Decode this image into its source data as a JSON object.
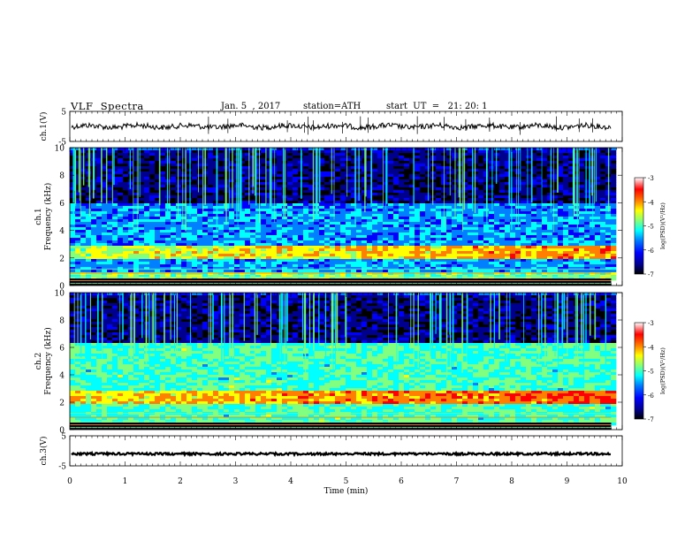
{
  "header": {
    "title": "VLF  Spectra",
    "date": "Jan. 5  , 2017",
    "station": "station=ATH",
    "start": "start  UT  =   21: 20: 1"
  },
  "chart_data": [
    {
      "type": "line",
      "panel": "ch1-waveform",
      "ylabel": "ch.1(V)",
      "ylim": [
        -5,
        5
      ],
      "yticks": [
        "5",
        "-5"
      ],
      "xlim": [
        0,
        10
      ],
      "approx_level": 0,
      "color": "#000000"
    },
    {
      "type": "heatmap",
      "panel": "ch1-spectrogram",
      "ylabel_line1": "ch.1",
      "ylabel_line2": "Frequency  (kHz)",
      "ylim": [
        0,
        10
      ],
      "yticks": [
        "0",
        "2",
        "4",
        "6",
        "8",
        "10"
      ],
      "xlim": [
        0,
        10
      ],
      "data_xmax": 9.8,
      "colorbar": {
        "label": "log(PSD)(V²/Hz)",
        "range": [
          -7,
          -3
        ],
        "ticks": [
          "-3",
          "-4",
          "-5",
          "-6",
          "-7"
        ],
        "colors": [
          "#000000",
          "#00008f",
          "#0000ff",
          "#0080ff",
          "#00ffff",
          "#80ff80",
          "#ffff00",
          "#ff8000",
          "#ff0000",
          "#ffffff"
        ]
      },
      "bands": [
        {
          "fmin": 0.0,
          "fmax": 1.0,
          "level": -4.8
        },
        {
          "fmin": 1.0,
          "fmax": 2.0,
          "level": -5.6
        },
        {
          "fmin": 2.0,
          "fmax": 3.0,
          "level": -4.6
        },
        {
          "fmin": 3.0,
          "fmax": 6.0,
          "level": -5.6
        },
        {
          "fmin": 6.0,
          "fmax": 10.0,
          "level": -6.6
        }
      ]
    },
    {
      "type": "heatmap",
      "panel": "ch2-spectrogram",
      "ylabel_line1": "ch.2",
      "ylabel_line2": "Frequency  (kHz)",
      "ylim": [
        0,
        10
      ],
      "yticks": [
        "0",
        "2",
        "4",
        "6",
        "8",
        "10"
      ],
      "xlim": [
        0,
        10
      ],
      "data_xmax": 9.8,
      "colorbar": {
        "label": "log(PSD)(V²/Hz)",
        "range": [
          -7,
          -3
        ],
        "ticks": [
          "-3",
          "-4",
          "-5",
          "-6",
          "-7"
        ],
        "colors": [
          "#000000",
          "#00008f",
          "#0000ff",
          "#0080ff",
          "#00ffff",
          "#80ff80",
          "#ffff00",
          "#ff8000",
          "#ff0000",
          "#ffffff"
        ]
      },
      "bands": [
        {
          "fmin": 0.0,
          "fmax": 2.0,
          "level": -5.0
        },
        {
          "fmin": 2.0,
          "fmax": 3.0,
          "level": -4.3
        },
        {
          "fmin": 3.0,
          "fmax": 6.4,
          "level": -5.0
        },
        {
          "fmin": 6.4,
          "fmax": 10.0,
          "level": -6.6
        }
      ]
    },
    {
      "type": "line",
      "panel": "ch3-waveform",
      "ylabel": "ch.3(V)",
      "ylim": [
        -5,
        5
      ],
      "yticks": [
        "5",
        "-5"
      ],
      "xlim": [
        0,
        10
      ],
      "approx_level": -1,
      "xlabel": "Time  (min)",
      "xticks": [
        "0",
        "1",
        "2",
        "3",
        "4",
        "5",
        "6",
        "7",
        "8",
        "9",
        "10"
      ],
      "color": "#000000"
    }
  ]
}
